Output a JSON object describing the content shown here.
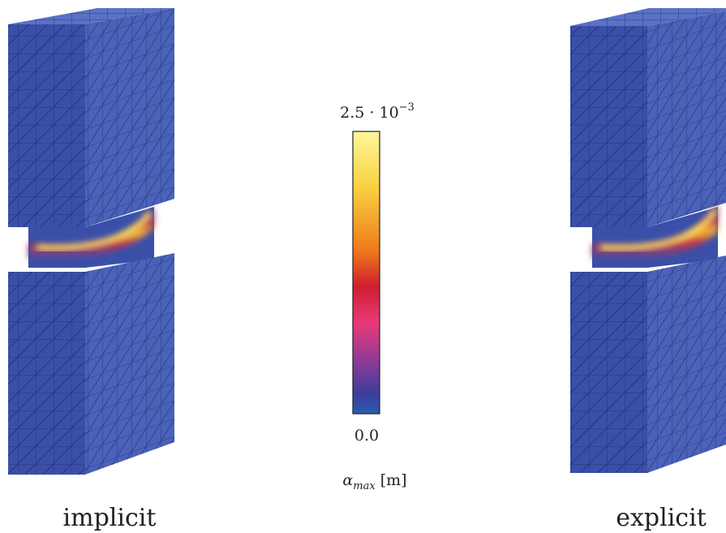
{
  "panels": [
    {
      "caption": "implicit"
    },
    {
      "caption": "explicit"
    }
  ],
  "colorbar": {
    "lim": [
      0,
      0.0025
    ],
    "ticks": [
      {
        "value": 0.0025,
        "label": {
          "base": "2.5 · 10",
          "exponent": "−3"
        }
      },
      {
        "value": 0,
        "label": "0.0"
      }
    ],
    "label": {
      "symbol": "α",
      "subscript": "max",
      "unit": "[m]"
    }
  }
}
